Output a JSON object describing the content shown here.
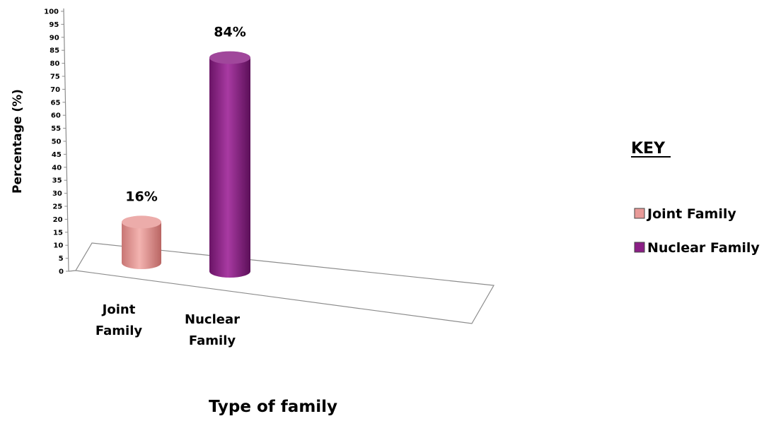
{
  "chart_data": {
    "type": "bar",
    "style": "3d-cylinder",
    "categories": [
      "Joint Family",
      "Nuclear Family"
    ],
    "category_labels": [
      [
        "Joint",
        "Family"
      ],
      [
        "Nuclear",
        "Family"
      ]
    ],
    "values": [
      16,
      84
    ],
    "data_labels": [
      "16%",
      "84%"
    ],
    "ylabel": "Percentage (%)",
    "xlabel": "Type of family",
    "ylim": [
      0,
      100
    ],
    "y_step": 5,
    "grid": false,
    "legend": {
      "title": "KEY",
      "placement": "right",
      "entries": [
        "Joint Family",
        "Nuclear Family"
      ]
    },
    "colors": [
      "#e89a98",
      "#8b1f86"
    ]
  }
}
